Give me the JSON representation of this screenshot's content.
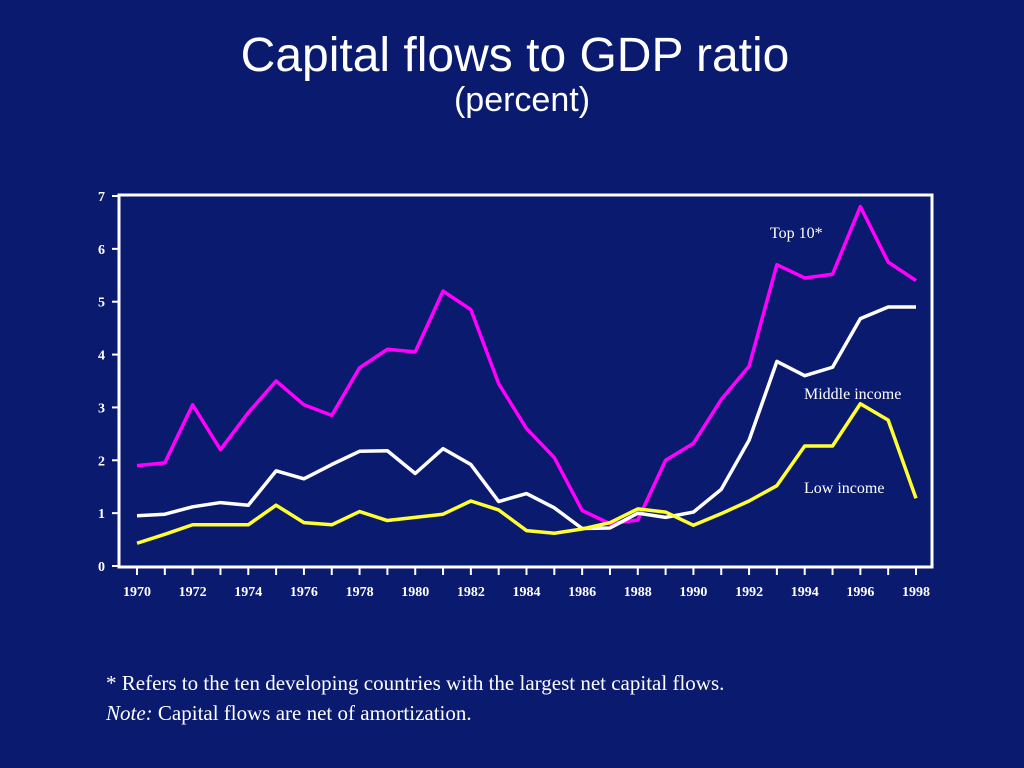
{
  "slide": {
    "title": "Capital flows to GDP ratio",
    "subtitle": "(percent)",
    "footnote": "* Refers to the ten developing countries with the largest net capital flows.",
    "note_label": "Note:",
    "note_text": " Capital flows are net of amortization."
  },
  "colors": {
    "background": "#0A1A6E",
    "top10": "#FF00FF",
    "middle": "#FFFFFF",
    "low": "#FFFF33"
  },
  "chart_data": {
    "type": "line",
    "title": "",
    "xlabel": "",
    "ylabel": "",
    "ylim": [
      0,
      7
    ],
    "xlim": [
      1970,
      1998
    ],
    "grid": false,
    "x": [
      1970,
      1971,
      1972,
      1973,
      1974,
      1975,
      1976,
      1977,
      1978,
      1979,
      1980,
      1981,
      1982,
      1983,
      1984,
      1985,
      1986,
      1987,
      1988,
      1989,
      1990,
      1991,
      1992,
      1993,
      1994,
      1995,
      1996,
      1997,
      1998
    ],
    "x_tick_labels": [
      "1970",
      "1972",
      "1974",
      "1976",
      "1978",
      "1980",
      "1982",
      "1984",
      "1986",
      "1988",
      "1990",
      "1992",
      "1994",
      "1996",
      "1998"
    ],
    "y_tick_labels": [
      "0",
      "1",
      "2",
      "3",
      "4",
      "5",
      "6",
      "7"
    ],
    "series": [
      {
        "name": "Top 10*",
        "color_key": "top10",
        "values": [
          1.9,
          1.95,
          3.05,
          2.2,
          2.9,
          3.5,
          3.05,
          2.85,
          3.75,
          4.1,
          4.05,
          5.2,
          4.85,
          3.45,
          2.6,
          2.05,
          1.05,
          0.8,
          0.87,
          2.0,
          2.32,
          3.15,
          3.78,
          5.7,
          5.45,
          5.52,
          6.8,
          5.75,
          5.4
        ]
      },
      {
        "name": "Middle income",
        "color_key": "middle",
        "values": [
          0.95,
          0.98,
          1.12,
          1.2,
          1.15,
          1.8,
          1.65,
          1.92,
          2.17,
          2.18,
          1.75,
          2.22,
          1.92,
          1.22,
          1.37,
          1.1,
          0.71,
          0.72,
          1.0,
          0.92,
          1.02,
          1.45,
          2.38,
          3.87,
          3.6,
          3.76,
          4.68,
          4.9,
          4.9
        ]
      },
      {
        "name": "Low income",
        "color_key": "low",
        "values": [
          0.43,
          0.6,
          0.78,
          0.78,
          0.78,
          1.15,
          0.82,
          0.78,
          1.03,
          0.86,
          0.92,
          0.98,
          1.23,
          1.06,
          0.67,
          0.62,
          0.7,
          0.82,
          1.08,
          1.02,
          0.77,
          0.99,
          1.23,
          1.52,
          2.27,
          2.27,
          3.07,
          2.76,
          1.28
        ]
      }
    ],
    "annotations": [
      {
        "text": "Top 10*",
        "series": "Top 10*"
      },
      {
        "text": "Middle income",
        "series": "Middle income"
      },
      {
        "text": "Low income",
        "series": "Low income"
      }
    ]
  }
}
